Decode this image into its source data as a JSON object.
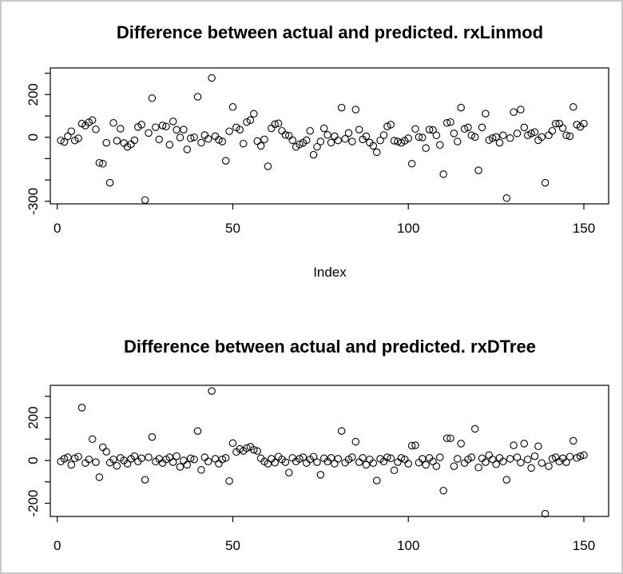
{
  "window": {
    "background_color": "#ffffff",
    "border_color": "#c8c8c8"
  },
  "chart_data": [
    {
      "type": "scatter",
      "title": "Difference between actual and predicted. rxLinmod",
      "xlabel": "Index",
      "ylabel": "",
      "marker": "open-circle",
      "marker_color": "#000000",
      "grid": false,
      "legend": "none",
      "xlim": [
        -5,
        157
      ],
      "ylim": [
        -315,
        325
      ],
      "xticks": [
        {
          "v": 0,
          "label": "0"
        },
        {
          "v": 50,
          "label": "50"
        },
        {
          "v": 100,
          "label": "100"
        },
        {
          "v": 150,
          "label": "150"
        }
      ],
      "yticks": [
        {
          "v": 300,
          "label": ""
        },
        {
          "v": 200,
          "label": "200"
        },
        {
          "v": 100,
          "label": ""
        },
        {
          "v": 0,
          "label": "0"
        },
        {
          "v": -100,
          "label": ""
        },
        {
          "v": -200,
          "label": ""
        },
        {
          "v": -300,
          "label": "-300"
        }
      ],
      "x_start_index": 1,
      "values": [
        -15,
        -22,
        5,
        28,
        -15,
        -5,
        64,
        55,
        70,
        80,
        37,
        -120,
        -124,
        -26,
        -213,
        67,
        -16,
        40,
        -27,
        -45,
        -33,
        -14,
        48,
        59,
        -294,
        20,
        183,
        47,
        -10,
        55,
        50,
        -35,
        74,
        35,
        -1,
        36,
        -57,
        -5,
        0,
        190,
        -25,
        10,
        -8,
        278,
        5,
        -12,
        -20,
        -110,
        28,
        142,
        46,
        36,
        -30,
        71,
        80,
        110,
        -18,
        -40,
        -10,
        -136,
        42,
        61,
        65,
        30,
        11,
        7,
        -14,
        -45,
        -33,
        -26,
        -14,
        30,
        -82,
        -45,
        -20,
        42,
        11,
        -25,
        5,
        -15,
        139,
        -8,
        20,
        -20,
        130,
        36,
        -10,
        5,
        -25,
        -40,
        -70,
        -15,
        10,
        51,
        59,
        -16,
        -20,
        -26,
        -16,
        -5,
        -124,
        39,
        1,
        -1,
        -51,
        36,
        34,
        9,
        -36,
        -173,
        67,
        71,
        18,
        -20,
        139,
        39,
        46,
        9,
        1,
        -155,
        46,
        111,
        -13,
        -4,
        1,
        -26,
        9,
        -285,
        -4,
        118,
        18,
        130,
        46,
        9,
        18,
        24,
        -14,
        1,
        -213,
        9,
        30,
        64,
        64,
        43,
        9,
        5,
        142,
        59,
        49,
        64
      ]
    },
    {
      "type": "scatter",
      "title": "Difference between actual and predicted. rxDTree",
      "xlabel": "",
      "ylabel": "",
      "marker": "open-circle",
      "marker_color": "#000000",
      "grid": false,
      "legend": "none",
      "xlim": [
        -5,
        157
      ],
      "ylim": [
        -260,
        348
      ],
      "xticks": [
        {
          "v": 0,
          "label": "0"
        },
        {
          "v": 50,
          "label": "50"
        },
        {
          "v": 100,
          "label": "100"
        },
        {
          "v": 150,
          "label": "150"
        }
      ],
      "yticks": [
        {
          "v": 300,
          "label": ""
        },
        {
          "v": 200,
          "label": "200"
        },
        {
          "v": 100,
          "label": ""
        },
        {
          "v": 0,
          "label": "0"
        },
        {
          "v": -100,
          "label": ""
        },
        {
          "v": -200,
          "label": "-200"
        }
      ],
      "x_start_index": 1,
      "values": [
        -5,
        8,
        15,
        -20,
        10,
        18,
        247,
        -12,
        5,
        100,
        -8,
        -78,
        62,
        41,
        -10,
        5,
        -25,
        12,
        0,
        -15,
        8,
        20,
        -5,
        10,
        -90,
        15,
        110,
        -5,
        8,
        -12,
        5,
        15,
        -8,
        20,
        -30,
        0,
        -20,
        10,
        5,
        138,
        -44,
        15,
        -5,
        325,
        8,
        -15,
        5,
        12,
        -96,
        81,
        40,
        54,
        45,
        58,
        64,
        50,
        44,
        10,
        -5,
        -15,
        8,
        -10,
        18,
        5,
        -8,
        -57,
        12,
        -5,
        8,
        15,
        -12,
        5,
        18,
        -8,
        -67,
        10,
        -5,
        12,
        -15,
        8,
        138,
        -10,
        5,
        15,
        88,
        -8,
        12,
        -20,
        5,
        -12,
        -94,
        8,
        -5,
        15,
        10,
        -46,
        -8,
        12,
        5,
        -15,
        69,
        71,
        -10,
        8,
        -20,
        12,
        -5,
        -27,
        15,
        -141,
        104,
        104,
        -27,
        8,
        79,
        -12,
        5,
        15,
        148,
        -33,
        10,
        -8,
        25,
        5,
        -18,
        12,
        -5,
        -90,
        8,
        71,
        15,
        -10,
        79,
        5,
        -35,
        20,
        66,
        -12,
        -249,
        -27,
        8,
        15,
        -5,
        10,
        -8,
        18,
        92,
        12,
        20,
        25
      ]
    }
  ]
}
